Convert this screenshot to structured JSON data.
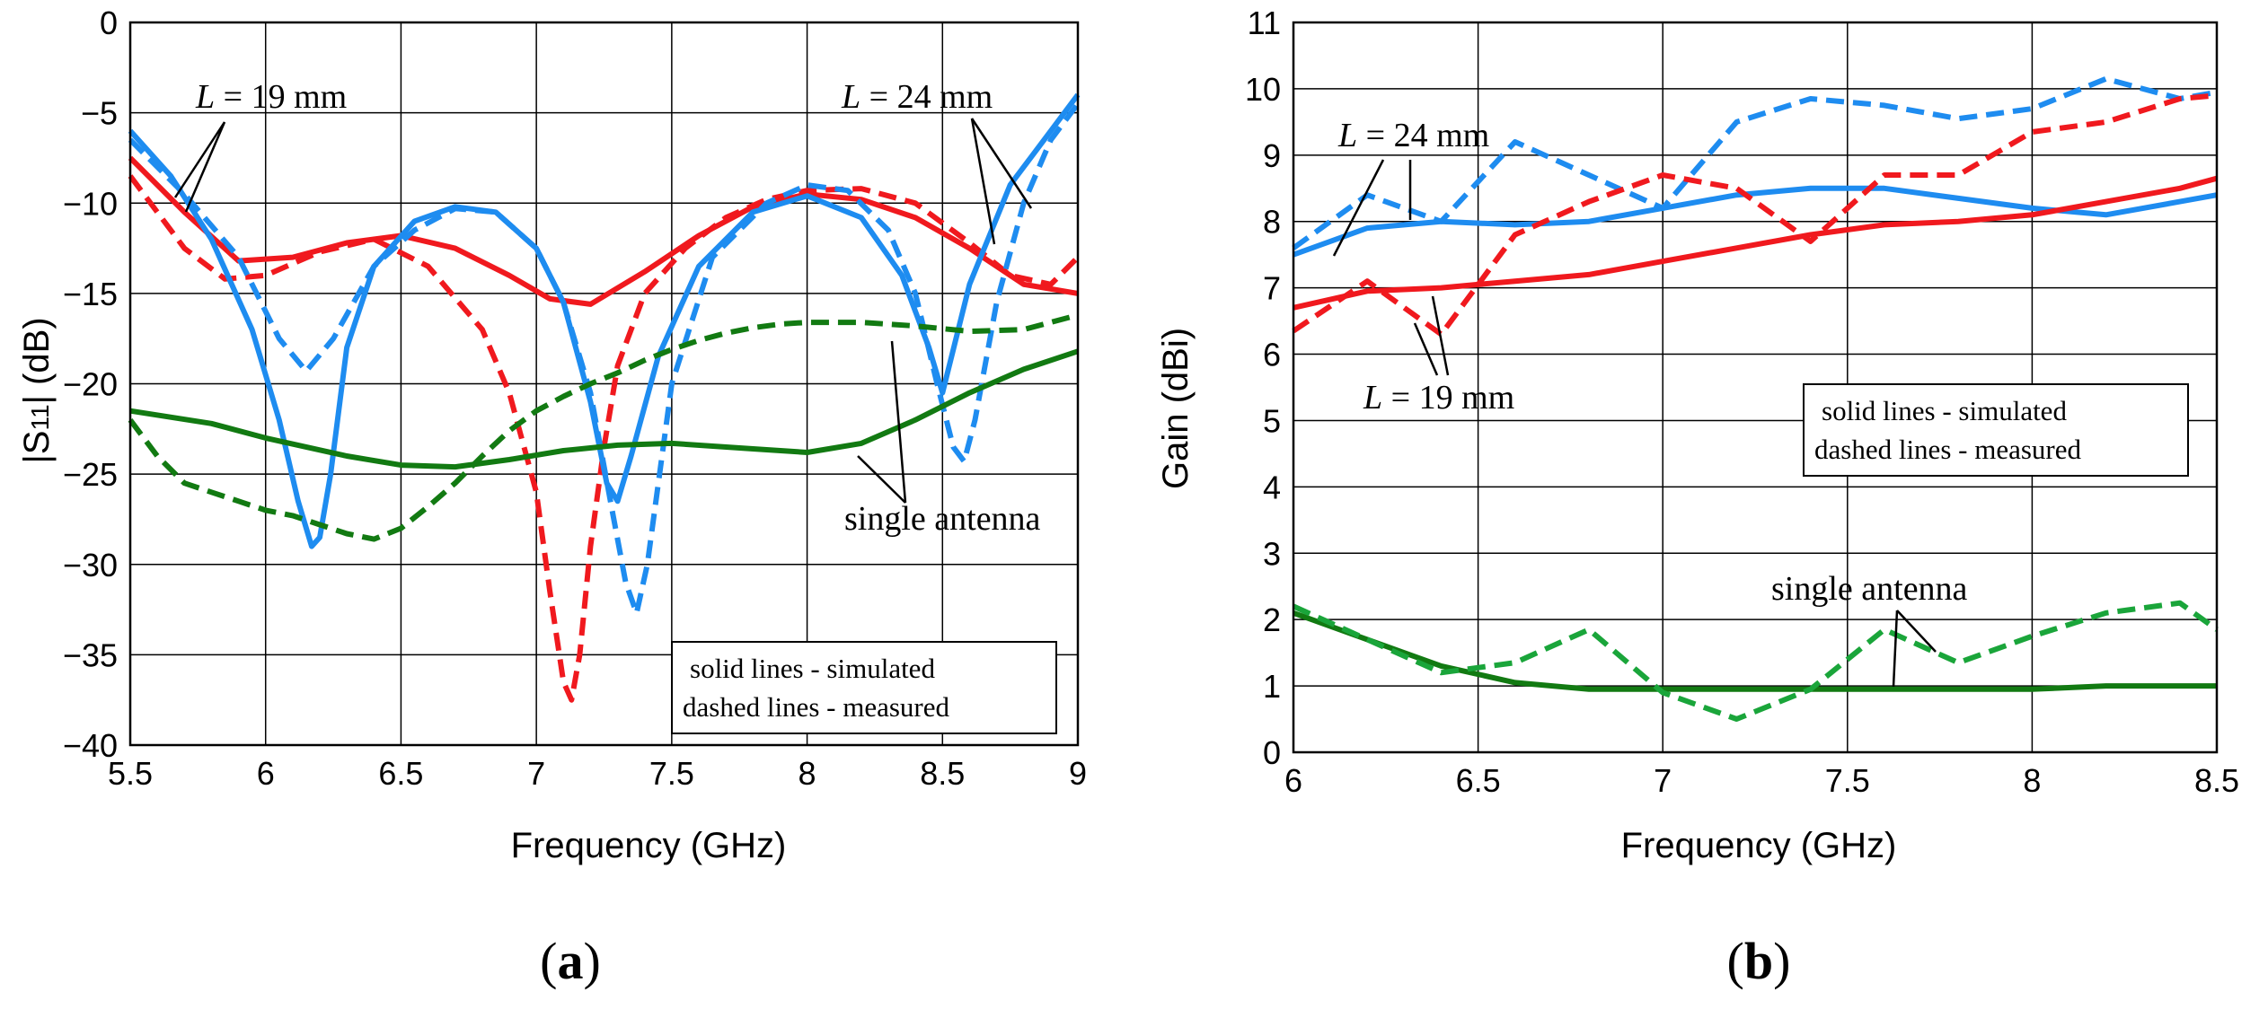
{
  "colors": {
    "red": "#f0191e",
    "blue": "#1e8cf0",
    "green": "#127a12",
    "green_measured": "#1aa53a"
  },
  "chart_data": [
    {
      "type": "line",
      "panel_label": "a",
      "xlabel": "Frequency (GHz)",
      "ylabel": "|S11| (dB)",
      "ylabel_main": "|S",
      "ylabel_sub": "11",
      "ylabel_tail": "| (dB)",
      "xlim": [
        5.5,
        9
      ],
      "ylim": [
        -40,
        0
      ],
      "xticks": [
        "5.5",
        "6",
        "6.5",
        "7",
        "7.5",
        "8",
        "8.5",
        "9"
      ],
      "yticks": [
        "0",
        "−5",
        "−10",
        "−15",
        "−20",
        "−25",
        "−30",
        "−35",
        "−40"
      ],
      "grid": true,
      "legend": {
        "line1": "solid lines - simulated",
        "line2": "dashed lines - measured",
        "position": "bottom-right"
      },
      "annotations": [
        {
          "italic": "L",
          "text": " = 19 mm"
        },
        {
          "italic": "L",
          "text": " = 24 mm"
        },
        {
          "italic": "",
          "text": "single antenna"
        }
      ],
      "series": [
        {
          "name": "L = 19 mm simulated",
          "color": "red",
          "dash": false,
          "x": [
            5.5,
            5.7,
            5.9,
            6.1,
            6.3,
            6.5,
            6.7,
            6.9,
            7.05,
            7.2,
            7.4,
            7.6,
            7.8,
            8.0,
            8.2,
            8.4,
            8.6,
            8.8,
            9.0
          ],
          "y": [
            -7.5,
            -10.5,
            -13.2,
            -13.0,
            -12.2,
            -11.8,
            -12.5,
            -14.0,
            -15.3,
            -15.6,
            -13.8,
            -11.8,
            -10.2,
            -9.5,
            -9.8,
            -10.8,
            -12.5,
            -14.5,
            -15.0
          ]
        },
        {
          "name": "L = 19 mm measured",
          "color": "red",
          "dash": true,
          "x": [
            5.5,
            5.7,
            5.85,
            6.0,
            6.2,
            6.4,
            6.6,
            6.8,
            6.9,
            7.0,
            7.05,
            7.1,
            7.13,
            7.16,
            7.2,
            7.25,
            7.3,
            7.4,
            7.55,
            7.7,
            7.85,
            8.0,
            8.2,
            8.4,
            8.6,
            8.75,
            8.9,
            9.0
          ],
          "y": [
            -8.5,
            -12.5,
            -14.2,
            -14.0,
            -12.7,
            -12.0,
            -13.5,
            -17.0,
            -20.5,
            -26.0,
            -31.5,
            -36.5,
            -37.5,
            -35.0,
            -29.0,
            -23.5,
            -19.0,
            -15.0,
            -12.5,
            -10.8,
            -9.8,
            -9.3,
            -9.2,
            -10.0,
            -12.2,
            -14.0,
            -14.5,
            -13.0
          ]
        },
        {
          "name": "L = 24 mm simulated",
          "color": "blue",
          "dash": false,
          "x": [
            5.5,
            5.65,
            5.8,
            5.95,
            6.05,
            6.12,
            6.17,
            6.2,
            6.24,
            6.3,
            6.4,
            6.55,
            6.7,
            6.85,
            7.0,
            7.1,
            7.2,
            7.26,
            7.3,
            7.35,
            7.45,
            7.6,
            7.8,
            8.0,
            8.2,
            8.35,
            8.45,
            8.5,
            8.6,
            8.75,
            8.9,
            9.0
          ],
          "y": [
            -6.0,
            -8.5,
            -12.0,
            -17.0,
            -22.0,
            -26.5,
            -29.0,
            -28.5,
            -25.0,
            -18.0,
            -13.5,
            -11.0,
            -10.2,
            -10.5,
            -12.5,
            -15.5,
            -21.0,
            -25.5,
            -26.5,
            -24.0,
            -18.5,
            -13.5,
            -10.5,
            -9.6,
            -10.8,
            -14.0,
            -18.0,
            -20.5,
            -14.5,
            -9.0,
            -6.0,
            -4.0
          ]
        },
        {
          "name": "L = 24 mm measured",
          "color": "blue",
          "dash": true,
          "x": [
            5.5,
            5.7,
            5.9,
            6.05,
            6.15,
            6.25,
            6.4,
            6.55,
            6.7,
            6.85,
            7.0,
            7.1,
            7.2,
            7.28,
            7.33,
            7.37,
            7.41,
            7.5,
            7.65,
            7.85,
            8.0,
            8.15,
            8.3,
            8.4,
            8.48,
            8.54,
            8.58,
            8.62,
            8.7,
            8.8,
            8.9,
            9.0
          ],
          "y": [
            -6.5,
            -9.5,
            -13.0,
            -17.5,
            -19.3,
            -17.5,
            -13.5,
            -11.5,
            -10.3,
            -10.5,
            -12.5,
            -15.5,
            -20.5,
            -27.0,
            -31.0,
            -32.7,
            -30.0,
            -20.0,
            -13.0,
            -10.0,
            -9.0,
            -9.3,
            -11.5,
            -15.0,
            -20.0,
            -23.5,
            -24.3,
            -22.0,
            -15.5,
            -10.0,
            -6.5,
            -4.5
          ]
        },
        {
          "name": "single antenna simulated",
          "color": "green",
          "dash": false,
          "x": [
            5.5,
            5.8,
            6.0,
            6.3,
            6.5,
            6.7,
            6.9,
            7.1,
            7.3,
            7.5,
            7.8,
            8.0,
            8.2,
            8.4,
            8.6,
            8.8,
            9.0
          ],
          "y": [
            -21.5,
            -22.2,
            -23.0,
            -24.0,
            -24.5,
            -24.6,
            -24.2,
            -23.7,
            -23.4,
            -23.3,
            -23.6,
            -23.8,
            -23.3,
            -22.0,
            -20.5,
            -19.2,
            -18.2
          ]
        },
        {
          "name": "single antenna measured",
          "color": "green",
          "dash": true,
          "x": [
            5.5,
            5.6,
            5.7,
            5.8,
            5.9,
            6.0,
            6.1,
            6.2,
            6.3,
            6.4,
            6.5,
            6.6,
            6.7,
            6.8,
            6.9,
            7.0,
            7.1,
            7.2,
            7.3,
            7.4,
            7.5,
            7.6,
            7.7,
            7.8,
            7.9,
            8.0,
            8.2,
            8.4,
            8.6,
            8.8,
            9.0
          ],
          "y": [
            -22.0,
            -24.0,
            -25.5,
            -26.0,
            -26.5,
            -27.0,
            -27.3,
            -27.8,
            -28.3,
            -28.6,
            -28.0,
            -26.8,
            -25.5,
            -24.0,
            -22.6,
            -21.5,
            -20.7,
            -20.0,
            -19.4,
            -18.7,
            -18.1,
            -17.6,
            -17.2,
            -16.9,
            -16.7,
            -16.6,
            -16.6,
            -16.8,
            -17.1,
            -17.0,
            -16.2
          ]
        }
      ]
    },
    {
      "type": "line",
      "panel_label": "b",
      "xlabel": "Frequency (GHz)",
      "ylabel": "Gain (dBi)",
      "xlim": [
        6,
        8.5
      ],
      "ylim": [
        0,
        11
      ],
      "xticks": [
        "6",
        "6.5",
        "7",
        "7.5",
        "8",
        "8.5"
      ],
      "yticks": [
        "0",
        "1",
        "2",
        "3",
        "4",
        "5",
        "6",
        "7",
        "8",
        "9",
        "10",
        "11"
      ],
      "grid": true,
      "legend": {
        "line1": "solid lines - simulated",
        "line2": "dashed lines - measured",
        "position": "center-right"
      },
      "annotations": [
        {
          "italic": "L",
          "text": " = 24 mm"
        },
        {
          "italic": "L",
          "text": " = 19 mm"
        },
        {
          "italic": "",
          "text": "single antenna"
        }
      ],
      "series": [
        {
          "name": "L = 24 mm simulated",
          "color": "blue",
          "dash": false,
          "x": [
            6.0,
            6.2,
            6.4,
            6.6,
            6.8,
            7.0,
            7.2,
            7.4,
            7.6,
            7.8,
            8.0,
            8.2,
            8.4,
            8.5
          ],
          "y": [
            7.5,
            7.9,
            8.0,
            7.95,
            8.0,
            8.2,
            8.4,
            8.5,
            8.5,
            8.35,
            8.2,
            8.1,
            8.3,
            8.4
          ]
        },
        {
          "name": "L = 24 mm measured",
          "color": "blue",
          "dash": true,
          "x": [
            6.0,
            6.2,
            6.4,
            6.6,
            6.8,
            7.0,
            7.2,
            7.4,
            7.6,
            7.8,
            8.0,
            8.2,
            8.4,
            8.5
          ],
          "y": [
            7.6,
            8.4,
            8.0,
            9.2,
            8.7,
            8.2,
            9.5,
            9.85,
            9.75,
            9.55,
            9.7,
            10.15,
            9.85,
            9.95
          ]
        },
        {
          "name": "L = 19 mm simulated",
          "color": "red",
          "dash": false,
          "x": [
            6.0,
            6.2,
            6.4,
            6.6,
            6.8,
            7.0,
            7.2,
            7.4,
            7.6,
            7.8,
            8.0,
            8.2,
            8.4,
            8.5
          ],
          "y": [
            6.7,
            6.95,
            7.0,
            7.1,
            7.2,
            7.4,
            7.6,
            7.8,
            7.95,
            8.0,
            8.1,
            8.3,
            8.5,
            8.65
          ]
        },
        {
          "name": "L = 19 mm measured",
          "color": "red",
          "dash": true,
          "x": [
            6.0,
            6.2,
            6.4,
            6.6,
            6.8,
            7.0,
            7.2,
            7.4,
            7.6,
            7.8,
            8.0,
            8.2,
            8.4,
            8.5
          ],
          "y": [
            6.35,
            7.1,
            6.3,
            7.8,
            8.3,
            8.7,
            8.5,
            7.7,
            8.7,
            8.7,
            9.35,
            9.5,
            9.85,
            9.9
          ]
        },
        {
          "name": "single antenna simulated",
          "color": "green",
          "dash": false,
          "x": [
            6.0,
            6.2,
            6.4,
            6.6,
            6.8,
            7.0,
            7.2,
            7.4,
            7.6,
            7.8,
            8.0,
            8.2,
            8.4,
            8.5
          ],
          "y": [
            2.1,
            1.7,
            1.3,
            1.05,
            0.95,
            0.95,
            0.95,
            0.95,
            0.95,
            0.95,
            0.95,
            1.0,
            1.0,
            1.0
          ]
        },
        {
          "name": "single antenna measured",
          "color": "green_measured",
          "dash": true,
          "x": [
            6.0,
            6.2,
            6.4,
            6.6,
            6.8,
            7.0,
            7.2,
            7.4,
            7.6,
            7.8,
            8.0,
            8.2,
            8.4,
            8.5
          ],
          "y": [
            2.2,
            1.7,
            1.2,
            1.35,
            1.85,
            0.9,
            0.5,
            0.95,
            1.85,
            1.35,
            1.75,
            2.1,
            2.25,
            1.85
          ]
        }
      ]
    }
  ]
}
